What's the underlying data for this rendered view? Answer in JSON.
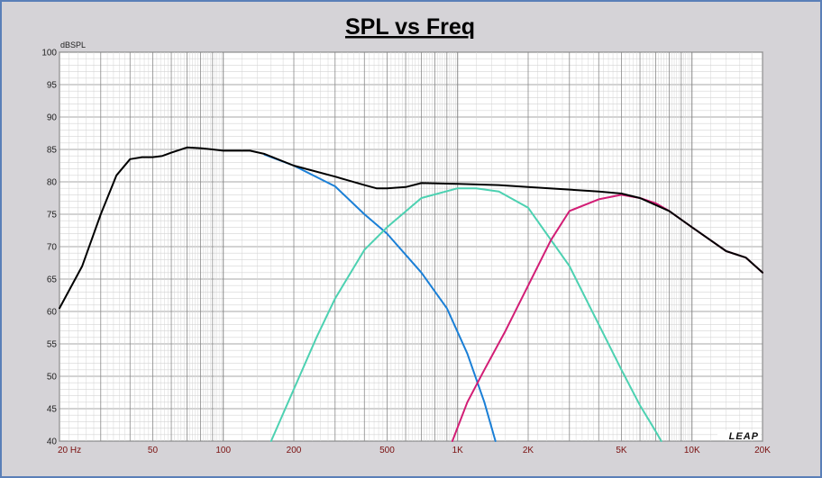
{
  "chart_data": {
    "type": "line",
    "title": "SPL vs Freq",
    "ylabel": "dBSPL",
    "xlabel": "",
    "x_scale": "log",
    "xlim": [
      20,
      20000
    ],
    "ylim": [
      40,
      100
    ],
    "yticks": [
      40,
      45,
      50,
      55,
      60,
      65,
      70,
      75,
      80,
      85,
      90,
      95,
      100
    ],
    "xticks": [
      {
        "value": 20,
        "label": "20  Hz"
      },
      {
        "value": 50,
        "label": "50"
      },
      {
        "value": 100,
        "label": "100"
      },
      {
        "value": 200,
        "label": "200"
      },
      {
        "value": 500,
        "label": "500"
      },
      {
        "value": 1000,
        "label": "1K"
      },
      {
        "value": 2000,
        "label": "2K"
      },
      {
        "value": 5000,
        "label": "5K"
      },
      {
        "value": 10000,
        "label": "10K"
      },
      {
        "value": 20000,
        "label": "20K"
      }
    ],
    "grid": true,
    "watermark": "LEAP",
    "series": [
      {
        "color": "#000000",
        "points": [
          [
            20,
            60.5
          ],
          [
            25,
            67
          ],
          [
            30,
            75
          ],
          [
            35,
            81
          ],
          [
            40,
            83.5
          ],
          [
            45,
            83.8
          ],
          [
            50,
            83.8
          ],
          [
            55,
            84
          ],
          [
            60,
            84.5
          ],
          [
            70,
            85.3
          ],
          [
            80,
            85.2
          ],
          [
            90,
            85
          ],
          [
            100,
            84.8
          ],
          [
            130,
            84.8
          ],
          [
            150,
            84.3
          ],
          [
            200,
            82.5
          ],
          [
            300,
            80.8
          ],
          [
            400,
            79.5
          ],
          [
            450,
            79
          ],
          [
            500,
            79
          ],
          [
            600,
            79.2
          ],
          [
            700,
            79.8
          ],
          [
            1000,
            79.7
          ],
          [
            1500,
            79.5
          ],
          [
            2000,
            79.2
          ],
          [
            3000,
            78.8
          ],
          [
            4000,
            78.5
          ],
          [
            5000,
            78.2
          ],
          [
            6000,
            77.5
          ],
          [
            8000,
            75.5
          ],
          [
            10000,
            73
          ],
          [
            12000,
            71
          ],
          [
            14000,
            69.3
          ],
          [
            17000,
            68.3
          ],
          [
            20000,
            66
          ]
        ]
      },
      {
        "color": "#1a7fd6",
        "points": [
          [
            150,
            84.2
          ],
          [
            200,
            82.5
          ],
          [
            300,
            79.3
          ],
          [
            400,
            75
          ],
          [
            500,
            72
          ],
          [
            700,
            66
          ],
          [
            900,
            60.5
          ],
          [
            1100,
            53.5
          ],
          [
            1300,
            46
          ],
          [
            1450,
            40
          ]
        ]
      },
      {
        "color": "#4cd1b1",
        "points": [
          [
            160,
            40
          ],
          [
            200,
            48
          ],
          [
            250,
            56
          ],
          [
            300,
            62
          ],
          [
            400,
            69.5
          ],
          [
            500,
            73
          ],
          [
            700,
            77.5
          ],
          [
            1000,
            79
          ],
          [
            1200,
            79
          ],
          [
            1500,
            78.5
          ],
          [
            2000,
            76
          ],
          [
            3000,
            67
          ],
          [
            4000,
            58
          ],
          [
            5000,
            51
          ],
          [
            6000,
            45.5
          ],
          [
            7000,
            41.5
          ],
          [
            7400,
            40
          ]
        ]
      },
      {
        "color": "#d21d75",
        "points": [
          [
            950,
            40
          ],
          [
            1100,
            46
          ],
          [
            1300,
            51
          ],
          [
            1600,
            57
          ],
          [
            2000,
            64
          ],
          [
            2500,
            71
          ],
          [
            3000,
            75.5
          ],
          [
            4000,
            77.3
          ],
          [
            5000,
            78
          ],
          [
            6000,
            77.5
          ],
          [
            7000,
            76.7
          ],
          [
            8000,
            75.5
          ],
          [
            10000,
            73
          ],
          [
            12000,
            71
          ],
          [
            14000,
            69.3
          ],
          [
            17000,
            68.3
          ],
          [
            20000,
            66
          ]
        ]
      }
    ]
  }
}
